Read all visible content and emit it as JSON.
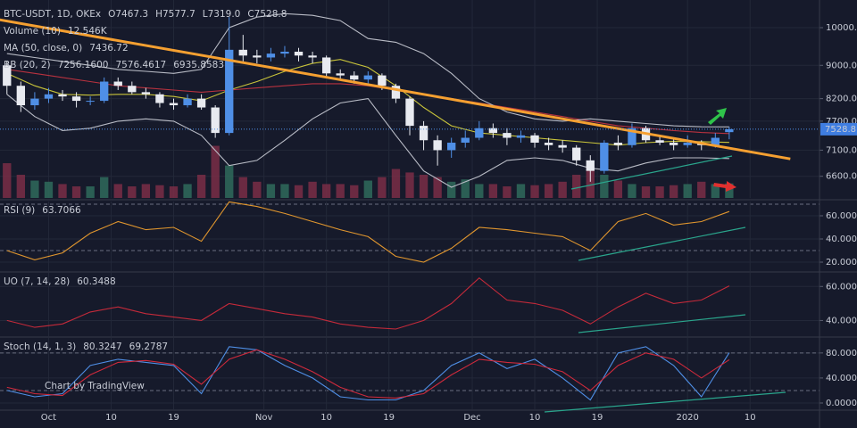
{
  "chart_data": [
    {
      "type": "candlestick",
      "title": "BTC-USDT, 1D, OKEx",
      "ohlc_labels": [
        "O7467.3",
        "H7577.7",
        "L7319.0",
        "C7528.8"
      ],
      "x": [
        -6,
        -4,
        -2,
        0,
        2,
        4,
        6,
        8,
        10,
        12,
        14,
        16,
        18,
        20,
        22,
        24,
        26,
        28,
        30,
        32,
        34,
        36,
        38,
        40,
        42,
        44,
        46,
        48,
        50,
        52,
        54,
        56,
        58,
        60,
        62,
        64,
        66,
        68,
        70,
        72,
        74,
        76,
        78,
        80,
        82,
        84,
        86,
        88,
        90,
        92,
        94,
        96,
        98
      ],
      "open": [
        9000,
        8500,
        8050,
        8200,
        8300,
        8250,
        8150,
        8150,
        8600,
        8500,
        8350,
        8300,
        8100,
        8050,
        8200,
        8000,
        7450,
        9400,
        9250,
        9200,
        9300,
        9350,
        9250,
        9200,
        8800,
        8750,
        8650,
        8750,
        8500,
        8200,
        7600,
        7300,
        7100,
        7250,
        7350,
        7550,
        7450,
        7350,
        7400,
        7250,
        7200,
        7150,
        6900,
        6700,
        7250,
        7200,
        7550,
        7300,
        7250,
        7200,
        7250,
        7200,
        7467.3
      ],
      "high": [
        9100,
        8600,
        8350,
        8450,
        8400,
        8350,
        8250,
        8700,
        8700,
        8600,
        8450,
        8350,
        8200,
        8300,
        8300,
        8050,
        10300,
        9800,
        9400,
        9450,
        9500,
        9450,
        9350,
        9250,
        8900,
        8850,
        8850,
        8800,
        8550,
        8250,
        7700,
        7400,
        7350,
        7500,
        7700,
        7650,
        7550,
        7500,
        7450,
        7350,
        7300,
        7200,
        7000,
        7300,
        7400,
        7650,
        7600,
        7400,
        7350,
        7400,
        7300,
        7450,
        7577.7
      ],
      "low": [
        8300,
        7900,
        7950,
        8100,
        8150,
        8000,
        8050,
        8100,
        8400,
        8300,
        8200,
        8000,
        7950,
        8000,
        7950,
        7350,
        7400,
        9100,
        9050,
        9100,
        9200,
        9100,
        9050,
        8700,
        8650,
        8550,
        8550,
        8400,
        8100,
        7400,
        7100,
        6800,
        6950,
        7150,
        7300,
        7350,
        7200,
        7250,
        7150,
        7100,
        7050,
        6800,
        6500,
        6650,
        7100,
        7150,
        7250,
        7200,
        7100,
        7150,
        7100,
        7150,
        7319.0
      ],
      "close": [
        8500,
        8050,
        8200,
        8300,
        8250,
        8150,
        8150,
        8600,
        8500,
        8350,
        8300,
        8100,
        8050,
        8200,
        8000,
        7450,
        9400,
        9250,
        9200,
        9300,
        9350,
        9250,
        9200,
        8800,
        8750,
        8650,
        8750,
        8500,
        8200,
        7600,
        7300,
        7100,
        7250,
        7350,
        7550,
        7450,
        7350,
        7400,
        7250,
        7200,
        7150,
        6900,
        6700,
        7250,
        7200,
        7550,
        7300,
        7250,
        7200,
        7250,
        7200,
        7350,
        7528.8
      ],
      "up_color": "#4f8fe6",
      "down_color": "#e8eaf0",
      "log_scale": true,
      "ylim": [
        6212,
        10804
      ],
      "xlim": [
        -7,
        111
      ],
      "yticks": [
        {
          "value": 6600,
          "label": "6600.0"
        },
        {
          "value": 7100,
          "label": "7100.0"
        },
        {
          "value": 7700,
          "label": "7700.0"
        },
        {
          "value": 8200,
          "label": "8200.0"
        },
        {
          "value": 9000,
          "label": "9000.0"
        },
        {
          "value": 10000,
          "label": "10000.0"
        }
      ],
      "volume": {
        "name": "Volume (10)",
        "value_label": "12.546K",
        "ylim": [
          0,
          100
        ],
        "up_color": "#2f6b5c",
        "down_color": "#7a2e46",
        "values": [
          30,
          20,
          15,
          14,
          12,
          10,
          10,
          18,
          12,
          10,
          12,
          11,
          10,
          12,
          20,
          45,
          28,
          18,
          14,
          12,
          12,
          11,
          14,
          12,
          12,
          11,
          15,
          18,
          25,
          22,
          20,
          18,
          14,
          16,
          12,
          12,
          10,
          12,
          11,
          12,
          14,
          20,
          28,
          20,
          15,
          12,
          10,
          10,
          11,
          12,
          14,
          12,
          12.546
        ]
      },
      "indicators": [
        {
          "name": "MA (50, close, 0)",
          "x": [
            -6,
            -2,
            2,
            6,
            10,
            14,
            18,
            22,
            26,
            30,
            34,
            38,
            42,
            46,
            50,
            54,
            58,
            62,
            66,
            70,
            74,
            78,
            82,
            86,
            90,
            94,
            98
          ],
          "series": [
            {
              "color": "#b8323f",
              "values": [
                8900,
                8800,
                8700,
                8600,
                8500,
                8450,
                8400,
                8350,
                8400,
                8450,
                8500,
                8550,
                8550,
                8500,
                8400,
                8300,
                8200,
                8100,
                8000,
                7900,
                7800,
                7700,
                7600,
                7550,
                7500,
                7460,
                7436.72
              ]
            }
          ]
        },
        {
          "name": "BB (20, 2)",
          "x": [
            -6,
            -2,
            2,
            6,
            10,
            14,
            18,
            22,
            26,
            30,
            34,
            38,
            42,
            46,
            50,
            54,
            58,
            62,
            66,
            70,
            74,
            78,
            82,
            86,
            90,
            94,
            98
          ],
          "series": [
            {
              "color": "#c9c43a",
              "value_label": "7256.1600",
              "values": [
                8800,
                8500,
                8300,
                8280,
                8300,
                8300,
                8250,
                8150,
                8400,
                8600,
                8850,
                9050,
                9150,
                8950,
                8500,
                8000,
                7600,
                7450,
                7400,
                7350,
                7300,
                7250,
                7200,
                7250,
                7280,
                7270,
                7256.16
              ]
            },
            {
              "color": "#b9bcc6",
              "values": [
                9300,
                9200,
                9100,
                9000,
                8900,
                8850,
                8800,
                8900,
                10000,
                10300,
                10400,
                10350,
                10200,
                9700,
                9600,
                9300,
                8800,
                8200,
                7900,
                7750,
                7700,
                7750,
                7700,
                7650,
                7600,
                7580,
                7576.4617
              ]
            },
            {
              "color": "#b9bcc6",
              "values": [
                8300,
                7800,
                7500,
                7550,
                7700,
                7750,
                7700,
                7400,
                6800,
                6900,
                7300,
                7750,
                8100,
                8200,
                7400,
                6700,
                6400,
                6600,
                6900,
                6950,
                6900,
                6750,
                6700,
                6850,
                6950,
                6950,
                6935.8583
              ]
            }
          ]
        }
      ],
      "trendline": {
        "color": "#f5a031",
        "x": [
          -7.1,
          106.8
        ],
        "values": [
          10225,
          6928
        ]
      }
    },
    {
      "type": "line",
      "title": "RSI (9)",
      "xlim": [
        -7,
        111
      ],
      "ylim": [
        12.3,
        72.3
      ],
      "yticks": [
        {
          "value": 20,
          "label": "20.0000"
        },
        {
          "value": 40,
          "label": "40.0000"
        },
        {
          "value": 60,
          "label": "60.0000"
        }
      ],
      "bands": [
        70,
        30
      ],
      "x": [
        -6,
        -2,
        2,
        6,
        10,
        14,
        18,
        22,
        26,
        30,
        34,
        38,
        42,
        46,
        50,
        54,
        58,
        62,
        66,
        70,
        74,
        78,
        82,
        86,
        90,
        94,
        98
      ],
      "series": [
        {
          "color": "#e0962e",
          "values": [
            30,
            22,
            28,
            45,
            55,
            48,
            50,
            38,
            72,
            68,
            62,
            55,
            48,
            42,
            25,
            20,
            32,
            50,
            48,
            45,
            42,
            30,
            55,
            62,
            52,
            55,
            63.7066
          ]
        }
      ]
    },
    {
      "type": "line",
      "title": "UO (7, 14, 28)",
      "xlim": [
        -7,
        111
      ],
      "ylim": [
        30.8,
        68
      ],
      "yticks": [
        {
          "value": 40,
          "label": "40.0000"
        },
        {
          "value": 60,
          "label": "60.0000"
        }
      ],
      "bands": [],
      "x": [
        -6,
        -2,
        2,
        6,
        10,
        14,
        18,
        22,
        26,
        30,
        34,
        38,
        42,
        46,
        50,
        54,
        58,
        62,
        66,
        70,
        74,
        78,
        82,
        86,
        90,
        94,
        98
      ],
      "series": [
        {
          "color": "#c42a3a",
          "values": [
            40,
            36,
            38,
            45,
            48,
            44,
            42,
            40,
            50,
            47,
            44,
            42,
            38,
            36,
            35,
            40,
            50,
            65,
            52,
            50,
            46,
            38,
            48,
            56,
            50,
            52,
            60.3488
          ]
        }
      ]
    },
    {
      "type": "line",
      "title": "Stoch (14, 1, 3)",
      "xlim": [
        -7,
        111
      ],
      "ylim": [
        -10,
        104
      ],
      "yticks": [
        {
          "value": 0,
          "label": "0.0000"
        },
        {
          "value": 40,
          "label": "40.0000"
        },
        {
          "value": 80,
          "label": "80.0000"
        }
      ],
      "bands": [
        80,
        20
      ],
      "x": [
        -6,
        -2,
        2,
        6,
        10,
        14,
        18,
        22,
        26,
        30,
        34,
        38,
        42,
        46,
        50,
        54,
        58,
        62,
        66,
        70,
        74,
        78,
        82,
        86,
        90,
        94,
        98
      ],
      "series": [
        {
          "color": "#4f8fe6",
          "values": [
            20,
            10,
            15,
            60,
            70,
            65,
            60,
            15,
            90,
            85,
            60,
            40,
            10,
            5,
            5,
            20,
            60,
            80,
            55,
            70,
            40,
            5,
            80,
            90,
            60,
            10,
            80.3247
          ]
        },
        {
          "color": "#d02a3c",
          "values": [
            25,
            15,
            12,
            45,
            65,
            68,
            62,
            30,
            70,
            85,
            70,
            50,
            25,
            10,
            8,
            15,
            45,
            70,
            65,
            62,
            50,
            20,
            60,
            80,
            70,
            40,
            69.2787
          ]
        }
      ],
      "xticks": [
        {
          "value": 0,
          "label": "Oct"
        },
        {
          "value": 9,
          "label": "10"
        },
        {
          "value": 18,
          "label": "19"
        },
        {
          "value": 31,
          "label": "Nov"
        },
        {
          "value": 40,
          "label": "10"
        },
        {
          "value": 49,
          "label": "19"
        },
        {
          "value": 61,
          "label": "Dec"
        },
        {
          "value": 70,
          "label": "10"
        },
        {
          "value": 79,
          "label": "19"
        },
        {
          "value": 92,
          "label": "2020"
        },
        {
          "value": 101,
          "label": "10"
        }
      ],
      "watermark": "Chart by TradingView"
    }
  ]
}
